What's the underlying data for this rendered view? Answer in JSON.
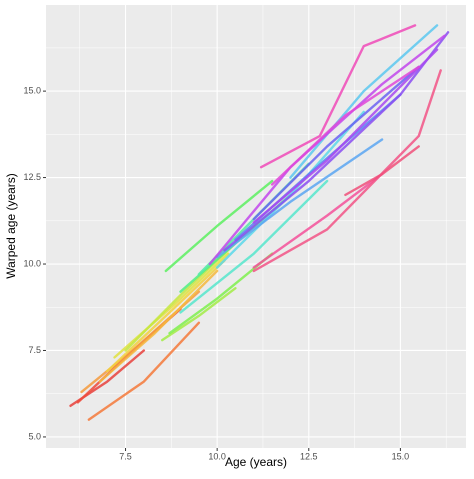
{
  "chart_data": {
    "type": "line",
    "x_label": "Age (years)",
    "y_label": "Warped age (years)",
    "xlim": [
      5.33,
      16.79
    ],
    "ylim": [
      4.68,
      17.49
    ],
    "xticks": [
      7.5,
      {
        "value": 10,
        "label": "10.0"
      },
      12.5,
      {
        "value": 15,
        "label": "15.0"
      }
    ],
    "yticks": [
      {
        "value": 5,
        "label": "5.0"
      },
      7.5,
      {
        "value": 10,
        "label": "10.0"
      },
      12.5,
      {
        "value": 15,
        "label": "15.0"
      }
    ],
    "x_minor_grid": [
      6.25,
      8.75,
      11.25,
      13.75,
      16.25
    ],
    "y_minor_grid": [
      6.25,
      8.75,
      11.25,
      13.75,
      16.25
    ],
    "grid": true,
    "background": "#ebebeb",
    "series": [
      {
        "color": "#e8413c",
        "x": [
          6.0,
          7.0,
          8.0
        ],
        "values": [
          5.9,
          6.6,
          7.5
        ]
      },
      {
        "color": "#ee4a3a",
        "x": [
          6.2,
          7.5,
          9.0
        ],
        "values": [
          6.0,
          7.3,
          8.7
        ]
      },
      {
        "color": "#f4793a",
        "x": [
          6.5,
          8.0,
          9.5
        ],
        "values": [
          5.5,
          6.6,
          8.3
        ]
      },
      {
        "color": "#f59a3c",
        "x": [
          6.3,
          7.8,
          9.5
        ],
        "values": [
          6.3,
          7.6,
          9.2
        ]
      },
      {
        "color": "#f6b83d",
        "x": [
          6.8,
          8.3,
          10.0
        ],
        "values": [
          6.6,
          8.0,
          9.8
        ]
      },
      {
        "color": "#f2d13e",
        "x": [
          7.0,
          8.5,
          10.2
        ],
        "values": [
          6.9,
          8.4,
          10.1
        ]
      },
      {
        "color": "#e0e23f",
        "x": [
          7.2,
          8.8,
          10.3
        ],
        "values": [
          7.3,
          8.8,
          10.3
        ]
      },
      {
        "color": "#c4e840",
        "x": [
          7.5,
          9.0,
          10.5
        ],
        "values": [
          7.5,
          9.1,
          10.6
        ]
      },
      {
        "color": "#a2ec45",
        "x": [
          8.5,
          9.5,
          10.5
        ],
        "values": [
          7.8,
          8.5,
          9.3
        ]
      },
      {
        "color": "#7ef04e",
        "x": [
          8.7,
          10.0,
          11.5
        ],
        "values": [
          8.0,
          9.0,
          10.3
        ]
      },
      {
        "color": "#5cf060",
        "x": [
          8.6,
          10.0,
          11.5
        ],
        "values": [
          9.8,
          11.1,
          12.4
        ]
      },
      {
        "color": "#50ee80",
        "x": [
          9.0,
          10.5,
          12.0
        ],
        "values": [
          9.2,
          10.6,
          12.0
        ]
      },
      {
        "color": "#52eaa5",
        "x": [
          9.5,
          11.0,
          12.5
        ],
        "values": [
          9.7,
          11.3,
          12.9
        ]
      },
      {
        "color": "#56e6cc",
        "x": [
          9.0,
          11.0,
          13.0
        ],
        "values": [
          8.6,
          10.3,
          12.4
        ]
      },
      {
        "color": "#5ad8ea",
        "x": [
          10.0,
          12.0,
          14.0
        ],
        "values": [
          9.9,
          12.0,
          14.4
        ]
      },
      {
        "color": "#5cc8f0",
        "x": [
          12.0,
          14.0,
          16.0
        ],
        "values": [
          12.5,
          15.0,
          16.9
        ]
      },
      {
        "color": "#5aa6f2",
        "x": [
          10.0,
          12.0,
          14.5
        ],
        "values": [
          10.2,
          11.8,
          13.6
        ]
      },
      {
        "color": "#5b80f2",
        "x": [
          10.5,
          12.5,
          15.0
        ],
        "values": [
          10.7,
          12.6,
          14.9
        ]
      },
      {
        "color": "#6a62f2",
        "x": [
          11.0,
          13.0,
          15.5
        ],
        "values": [
          11.3,
          13.4,
          15.7
        ]
      },
      {
        "color": "#8a4ef2",
        "x": [
          10.2,
          12.5,
          15.0,
          16.3
        ],
        "values": [
          10.4,
          12.4,
          14.9,
          16.7
        ]
      },
      {
        "color": "#a848f0",
        "x": [
          11.0,
          13.0,
          16.0
        ],
        "values": [
          11.2,
          13.0,
          16.2
        ]
      },
      {
        "color": "#c247ec",
        "x": [
          9.8,
          12.0,
          14.5,
          16.2
        ],
        "values": [
          10.0,
          12.8,
          15.2,
          16.6
        ]
      },
      {
        "color": "#e048d8",
        "x": [
          11.5,
          13.5,
          15.5
        ],
        "values": [
          12.3,
          14.3,
          15.7
        ]
      },
      {
        "color": "#f04ab8",
        "x": [
          11.2,
          12.8,
          14.0,
          15.4
        ],
        "values": [
          12.8,
          13.7,
          16.3,
          16.9
        ]
      },
      {
        "color": "#f4509a",
        "x": [
          11.0,
          13.0,
          14.5
        ],
        "values": [
          9.9,
          11.4,
          12.6
        ]
      },
      {
        "color": "#f25486",
        "x": [
          11.0,
          13.0,
          15.5,
          16.1
        ],
        "values": [
          9.8,
          11.0,
          13.7,
          15.6
        ]
      },
      {
        "color": "#f0507a",
        "x": [
          13.5,
          14.5,
          15.5
        ],
        "values": [
          12.0,
          12.6,
          13.4
        ]
      }
    ]
  }
}
